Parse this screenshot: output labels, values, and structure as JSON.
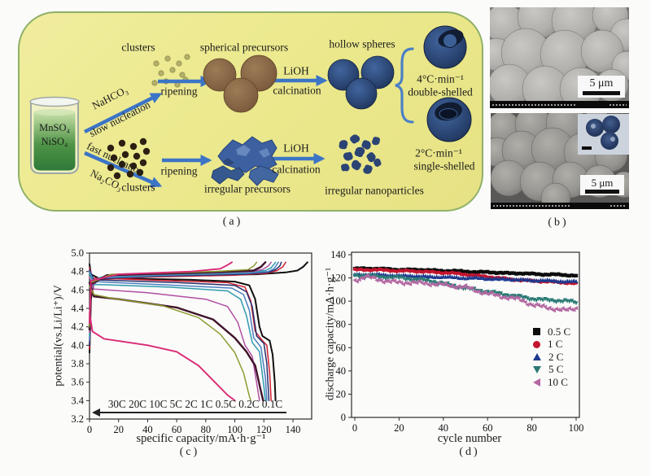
{
  "captions": {
    "a": "(a)",
    "b": "(b)",
    "c": "(c)",
    "d": "(d)"
  },
  "colors": {
    "panel_bg": "#ece98e",
    "panel_border": "#8fb068",
    "arrow_blue": "#3c74c6",
    "brace_blue": "#4b80c4"
  },
  "schematic": {
    "beaker": {
      "line1": "MnSO₄",
      "line2": "NiSO₄"
    },
    "route_top": {
      "reagent": "NaHCO₃",
      "mode": "slow nucleation"
    },
    "route_bottom": {
      "reagent": "Na₂CO₃",
      "mode": "fast nucleation"
    },
    "labels": {
      "clusters_top": "clusters",
      "spherical_precursors": "spherical precursors",
      "hollow_spheres": "hollow spheres",
      "ripening_top": "ripening",
      "lioh_top": "LiOH",
      "calcination_top": "calcination",
      "rate_fast": "4°C·min⁻¹",
      "double_shelled": "double-shelled",
      "rate_slow": "2°C·min⁻¹",
      "single_shelled": "single-shelled",
      "clusters_bottom": "clusters",
      "ripening_bottom": "ripening",
      "lioh_bottom": "LiOH",
      "calcination_bottom": "calcination",
      "irregular_precursors": "irregular precursors",
      "irregular_nanoparticles": "irregular nanoparticles"
    }
  },
  "sem": {
    "top": {
      "scale_label": "5 μm"
    },
    "bottom": {
      "scale_label": "5 μm"
    }
  },
  "chart_data": [
    {
      "id": "c",
      "type": "line",
      "xlabel": "specific capacity/mA·h·g⁻¹",
      "ylabel": "potential(vs.Li/Li⁺)/V",
      "xlim": [
        0,
        153
      ],
      "ylim": [
        3.2,
        5.0
      ],
      "xticks": [
        "0",
        "20",
        "40",
        "60",
        "80",
        "100",
        "120",
        "140"
      ],
      "yticks": [
        "3.2",
        "3.4",
        "3.6",
        "3.8",
        "4.0",
        "4.2",
        "4.4",
        "4.6",
        "4.8",
        "5.0"
      ],
      "rate_annotation": "30C 20C 10C 5C 2C 1C 0.5C 0.2C 0.1C",
      "series": [
        {
          "name": "0.1C",
          "color": "#101010",
          "width": 2,
          "charge": [
            [
              0,
              3.92
            ],
            [
              1,
              4.5
            ],
            [
              3,
              4.7
            ],
            [
              15,
              4.74
            ],
            [
              70,
              4.76
            ],
            [
              115,
              4.77
            ],
            [
              135,
              4.79
            ],
            [
              143,
              4.81
            ],
            [
              147,
              4.85
            ],
            [
              150,
              4.9
            ]
          ],
          "discharge": [
            [
              0,
              4.88
            ],
            [
              1,
              4.77
            ],
            [
              6,
              4.73
            ],
            [
              70,
              4.71
            ],
            [
              100,
              4.69
            ],
            [
              110,
              4.65
            ],
            [
              114,
              4.5
            ],
            [
              117,
              4.2
            ],
            [
              119,
              4.1
            ],
            [
              124,
              4.05
            ],
            [
              126,
              3.9
            ],
            [
              127.5,
              3.6
            ],
            [
              128,
              3.4
            ]
          ]
        },
        {
          "name": "0.2C",
          "color": "#cf2030",
          "width": 1.5,
          "charge": [
            [
              0,
              3.96
            ],
            [
              1,
              4.55
            ],
            [
              4,
              4.71
            ],
            [
              40,
              4.74
            ],
            [
              100,
              4.76
            ],
            [
              122,
              4.78
            ],
            [
              129,
              4.81
            ],
            [
              133,
              4.85
            ],
            [
              135,
              4.9
            ]
          ],
          "discharge": [
            [
              0,
              4.84
            ],
            [
              2,
              4.73
            ],
            [
              55,
              4.7
            ],
            [
              95,
              4.68
            ],
            [
              107,
              4.63
            ],
            [
              111,
              4.48
            ],
            [
              114,
              4.15
            ],
            [
              119,
              4.05
            ],
            [
              122,
              4.0
            ],
            [
              124,
              3.7
            ],
            [
              125,
              3.4
            ]
          ]
        },
        {
          "name": "0.5C",
          "color": "#27306e",
          "width": 1.5,
          "charge": [
            [
              0,
              4.0
            ],
            [
              1,
              4.58
            ],
            [
              5,
              4.72
            ],
            [
              50,
              4.75
            ],
            [
              105,
              4.77
            ],
            [
              123,
              4.79
            ],
            [
              128,
              4.82
            ],
            [
              131,
              4.86
            ],
            [
              132,
              4.9
            ]
          ],
          "discharge": [
            [
              0,
              4.82
            ],
            [
              3,
              4.71
            ],
            [
              60,
              4.68
            ],
            [
              100,
              4.65
            ],
            [
              108,
              4.58
            ],
            [
              112,
              4.42
            ],
            [
              115,
              4.1
            ],
            [
              120,
              4.02
            ],
            [
              122,
              3.8
            ],
            [
              123.5,
              3.4
            ]
          ]
        },
        {
          "name": "1C",
          "color": "#4b7fc0",
          "width": 1.5,
          "charge": [
            [
              0,
              4.05
            ],
            [
              1,
              4.6
            ],
            [
              6,
              4.73
            ],
            [
              55,
              4.76
            ],
            [
              108,
              4.78
            ],
            [
              123,
              4.8
            ],
            [
              127,
              4.83
            ],
            [
              130,
              4.9
            ]
          ],
          "discharge": [
            [
              0,
              4.8
            ],
            [
              3,
              4.69
            ],
            [
              60,
              4.65
            ],
            [
              98,
              4.62
            ],
            [
              106,
              4.55
            ],
            [
              110,
              4.38
            ],
            [
              113,
              4.08
            ],
            [
              118,
              3.98
            ],
            [
              121,
              3.65
            ],
            [
              122,
              3.4
            ]
          ]
        },
        {
          "name": "2C",
          "color": "#2f9aae",
          "width": 1.5,
          "charge": [
            [
              0,
              4.1
            ],
            [
              1,
              4.62
            ],
            [
              8,
              4.74
            ],
            [
              60,
              4.77
            ],
            [
              110,
              4.79
            ],
            [
              121,
              4.81
            ],
            [
              125,
              4.84
            ],
            [
              128,
              4.9
            ]
          ],
          "discharge": [
            [
              0,
              4.78
            ],
            [
              3,
              4.66
            ],
            [
              55,
              4.63
            ],
            [
              95,
              4.59
            ],
            [
              104,
              4.5
            ],
            [
              108,
              4.32
            ],
            [
              112,
              4.03
            ],
            [
              117,
              3.93
            ],
            [
              120,
              3.55
            ],
            [
              121,
              3.4
            ]
          ]
        },
        {
          "name": "5C",
          "color": "#b050a2",
          "width": 1.5,
          "charge": [
            [
              0,
              4.14
            ],
            [
              1,
              4.64
            ],
            [
              10,
              4.75
            ],
            [
              70,
              4.78
            ],
            [
              112,
              4.8
            ],
            [
              119,
              4.82
            ],
            [
              123,
              4.86
            ],
            [
              125,
              4.9
            ]
          ],
          "discharge": [
            [
              0,
              4.74
            ],
            [
              3,
              4.61
            ],
            [
              40,
              4.57
            ],
            [
              80,
              4.5
            ],
            [
              95,
              4.42
            ],
            [
              102,
              4.25
            ],
            [
              107,
              4.0
            ],
            [
              112,
              3.88
            ],
            [
              116,
              3.5
            ],
            [
              117,
              3.4
            ]
          ]
        },
        {
          "name": "10C",
          "color": "#40142a",
          "width": 2.4,
          "charge": [
            [
              0,
              4.17
            ],
            [
              1,
              4.66
            ],
            [
              12,
              4.76
            ],
            [
              80,
              4.79
            ],
            [
              113,
              4.81
            ],
            [
              118,
              4.85
            ],
            [
              121,
              4.9
            ]
          ],
          "discharge": [
            [
              0,
              4.68
            ],
            [
              3,
              4.53
            ],
            [
              20,
              4.5
            ],
            [
              60,
              4.41
            ],
            [
              85,
              4.28
            ],
            [
              100,
              4.08
            ],
            [
              108,
              3.93
            ],
            [
              114,
              3.78
            ],
            [
              118,
              3.5
            ],
            [
              119.5,
              3.4
            ]
          ]
        },
        {
          "name": "20C",
          "color": "#8e9c30",
          "width": 1.5,
          "charge": [
            [
              0,
              4.2
            ],
            [
              1,
              4.68
            ],
            [
              15,
              4.77
            ],
            [
              85,
              4.8
            ],
            [
              109,
              4.82
            ],
            [
              113,
              4.86
            ],
            [
              115,
              4.9
            ]
          ],
          "discharge": [
            [
              0,
              4.64
            ],
            [
              3,
              4.55
            ],
            [
              15,
              4.51
            ],
            [
              50,
              4.43
            ],
            [
              75,
              4.3
            ],
            [
              90,
              4.12
            ],
            [
              100,
              3.92
            ],
            [
              106,
              3.7
            ],
            [
              110,
              3.45
            ],
            [
              111,
              3.4
            ]
          ]
        },
        {
          "name": "30C",
          "color": "#d92a74",
          "width": 1.9,
          "charge": [
            [
              0,
              4.24
            ],
            [
              1,
              4.7
            ],
            [
              20,
              4.77
            ],
            [
              70,
              4.8
            ],
            [
              90,
              4.83
            ],
            [
              95,
              4.87
            ],
            [
              98,
              4.9
            ]
          ],
          "discharge": [
            [
              0,
              4.35
            ],
            [
              2,
              4.15
            ],
            [
              10,
              4.07
            ],
            [
              40,
              4.0
            ],
            [
              60,
              3.93
            ],
            [
              75,
              3.78
            ],
            [
              85,
              3.62
            ],
            [
              95,
              3.46
            ],
            [
              100,
              3.4
            ]
          ]
        }
      ]
    },
    {
      "id": "d",
      "type": "scatter",
      "xlabel": "cycle number",
      "ylabel": "discharge capacity/mA·h·g⁻¹",
      "xlim": [
        0,
        100
      ],
      "ylim": [
        0,
        140
      ],
      "xticks": [
        "0",
        "20",
        "40",
        "60",
        "80",
        "100"
      ],
      "yticks": [
        "0",
        "20",
        "40",
        "60",
        "80",
        "100",
        "120",
        "140"
      ],
      "cycle_step": 5,
      "legend_position": "right-middle",
      "series": [
        {
          "name": "0.5 C",
          "marker": "square",
          "color": "#0d0d0d",
          "jitter": 0.6,
          "values": [
            128,
            128,
            128,
            127.5,
            127,
            127,
            127,
            126.5,
            126,
            126,
            125.5,
            125,
            125,
            124.5,
            124,
            124,
            123.5,
            123,
            123,
            122.5,
            122
          ]
        },
        {
          "name": "1 C",
          "marker": "circle",
          "color": "#c4142e",
          "jitter": 0.7,
          "values": [
            127,
            127,
            127,
            126.5,
            126,
            126,
            125.5,
            125,
            124.5,
            124,
            123,
            122,
            121,
            120,
            119,
            118,
            117.5,
            117,
            116.5,
            116,
            115
          ]
        },
        {
          "name": "2 C",
          "marker": "triangle-up",
          "color": "#1e3a8f",
          "jitter": 0.7,
          "values": [
            123,
            123,
            123,
            122.5,
            122,
            122,
            121.5,
            121,
            121,
            120.5,
            120,
            120,
            119.5,
            119,
            119,
            118.5,
            118,
            118,
            117.5,
            117,
            117
          ]
        },
        {
          "name": "5 C",
          "marker": "triangle-down",
          "color": "#2a7a74",
          "jitter": 1.3,
          "values": [
            122,
            122,
            121,
            120.5,
            120,
            119,
            118,
            117,
            115,
            113,
            111,
            109.5,
            108,
            106.5,
            105,
            103.5,
            102,
            101,
            100.5,
            100,
            99
          ]
        },
        {
          "name": "10 C",
          "marker": "triangle-left",
          "color": "#b368a2",
          "jitter": 1.8,
          "values": [
            118,
            121,
            119,
            117,
            116,
            116,
            115.5,
            115,
            114,
            113,
            112,
            109,
            106.5,
            104.5,
            103,
            101,
            97,
            95,
            93.5,
            92,
            94
          ]
        }
      ]
    }
  ]
}
